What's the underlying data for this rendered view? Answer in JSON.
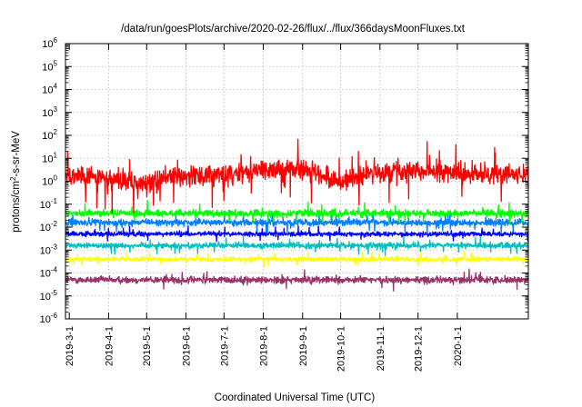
{
  "chart_data": {
    "type": "line",
    "title": "/data/run/goesPlots/archive/2020-02-26/flux/../flux/366daysMoonFluxes.txt",
    "xlabel": "Coordinated Universal Time (UTC)",
    "ylabel": "protons/cm²-s-sr-MeV",
    "ylabel_parts": {
      "pre": "protons/cm",
      "sup": "2",
      "post": "-s-sr-MeV"
    },
    "yscale": "log",
    "ylim_exponents": [
      -6,
      6
    ],
    "y_tick_base": "10",
    "y_tick_exponents": [
      "-6",
      "-5",
      "-4",
      "-3",
      "-2",
      "-1",
      "0",
      "1",
      "2",
      "3",
      "4",
      "5",
      "6"
    ],
    "xlim": [
      "2019-02-26",
      "2020-02-26"
    ],
    "x_ticks": [
      "2019-3-1",
      "2019-4-1",
      "2019-5-1",
      "2019-6-1",
      "2019-7-1",
      "2019-8-1",
      "2019-9-1",
      "2019-10-1",
      "2019-11-1",
      "2019-12-1",
      "2020-1-1"
    ],
    "grid": true,
    "series": [
      {
        "color": "#ff0000",
        "base_log": 0.2,
        "noise_log": 0.45,
        "profile": [
          {
            "x": "2019-02-26",
            "y": 1.3
          },
          {
            "x": "2019-03-15",
            "y": 2.0
          },
          {
            "x": "2019-04-01",
            "y": 1.0
          },
          {
            "x": "2019-05-01",
            "y": 0.7
          },
          {
            "x": "2019-05-20",
            "y": 2.0
          },
          {
            "x": "2019-06-15",
            "y": 1.5
          },
          {
            "x": "2019-07-15",
            "y": 2.0
          },
          {
            "x": "2019-08-01",
            "y": 3.0
          },
          {
            "x": "2019-08-20",
            "y": 4.0
          },
          {
            "x": "2019-09-15",
            "y": 2.0
          },
          {
            "x": "2019-10-01",
            "y": 0.8
          },
          {
            "x": "2019-10-20",
            "y": 2.0
          },
          {
            "x": "2019-11-15",
            "y": 3.0
          },
          {
            "x": "2019-12-15",
            "y": 2.5
          },
          {
            "x": "2020-01-15",
            "y": 2.0
          },
          {
            "x": "2020-02-26",
            "y": 2.0
          }
        ]
      },
      {
        "color": "#00ff00",
        "base_log": -1.4,
        "noise_log": 0.15,
        "profile": []
      },
      {
        "color": "#0080ff",
        "base_log": -1.8,
        "noise_log": 0.15,
        "profile": []
      },
      {
        "color": "#0000ff",
        "base_log": -2.3,
        "noise_log": 0.1,
        "profile": []
      },
      {
        "color": "#00bfbf",
        "base_log": -2.8,
        "noise_log": 0.12,
        "profile": []
      },
      {
        "color": "#ffff00",
        "base_log": -3.4,
        "noise_log": 0.1,
        "profile": []
      },
      {
        "color": "#99336b",
        "base_log": -4.3,
        "noise_log": 0.15,
        "profile": []
      }
    ]
  }
}
